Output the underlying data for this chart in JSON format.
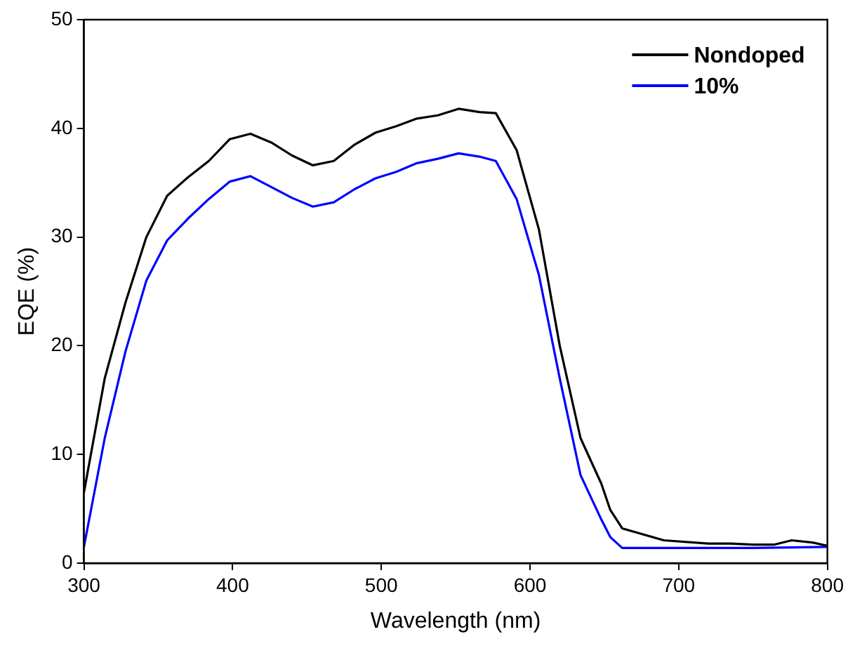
{
  "chart_data": {
    "type": "line",
    "xlabel": "Wavelength (nm)",
    "ylabel": "EQE (%)",
    "xlim": [
      300,
      800
    ],
    "xticks": [
      300,
      400,
      500,
      600,
      700,
      800
    ],
    "ylim": [
      0,
      50
    ],
    "yticks": [
      0,
      10,
      20,
      30,
      40,
      50
    ],
    "grid": false,
    "legend": "top right",
    "marker": "none",
    "line_style": "solid",
    "series": [
      {
        "name": "Nondoped",
        "color": "#000000",
        "x": [
          300,
          314,
          328,
          342,
          356,
          370,
          384,
          398,
          412,
          426,
          440,
          454,
          468,
          482,
          496,
          510,
          524,
          538,
          552,
          566,
          577,
          591,
          606,
          620,
          634,
          648,
          654,
          662,
          690,
          720,
          735,
          750,
          764,
          776,
          790,
          800
        ],
        "values": [
          6.5,
          17,
          24,
          30,
          33.8,
          35.5,
          37,
          39,
          39.5,
          38.7,
          37.5,
          36.6,
          37,
          38.5,
          39.6,
          40.2,
          40.9,
          41.2,
          41.8,
          41.5,
          41.4,
          38,
          30.7,
          20,
          11.5,
          7.3,
          4.9,
          3.2,
          2.1,
          1.8,
          1.8,
          1.7,
          1.7,
          2.1,
          1.9,
          1.6
        ]
      },
      {
        "name": "10%",
        "color": "#0000ff",
        "x": [
          300,
          314,
          328,
          342,
          356,
          370,
          384,
          398,
          412,
          426,
          440,
          454,
          468,
          482,
          496,
          510,
          524,
          538,
          552,
          566,
          577,
          591,
          606,
          620,
          634,
          648,
          654,
          662,
          700,
          750,
          800
        ],
        "values": [
          1.5,
          11.5,
          19.5,
          26,
          29.7,
          31.7,
          33.5,
          35.1,
          35.6,
          34.6,
          33.6,
          32.8,
          33.2,
          34.4,
          35.4,
          36,
          36.8,
          37.2,
          37.7,
          37.4,
          37,
          33.5,
          26.5,
          17,
          8.1,
          4,
          2.4,
          1.4,
          1.4,
          1.4,
          1.5
        ]
      }
    ]
  }
}
